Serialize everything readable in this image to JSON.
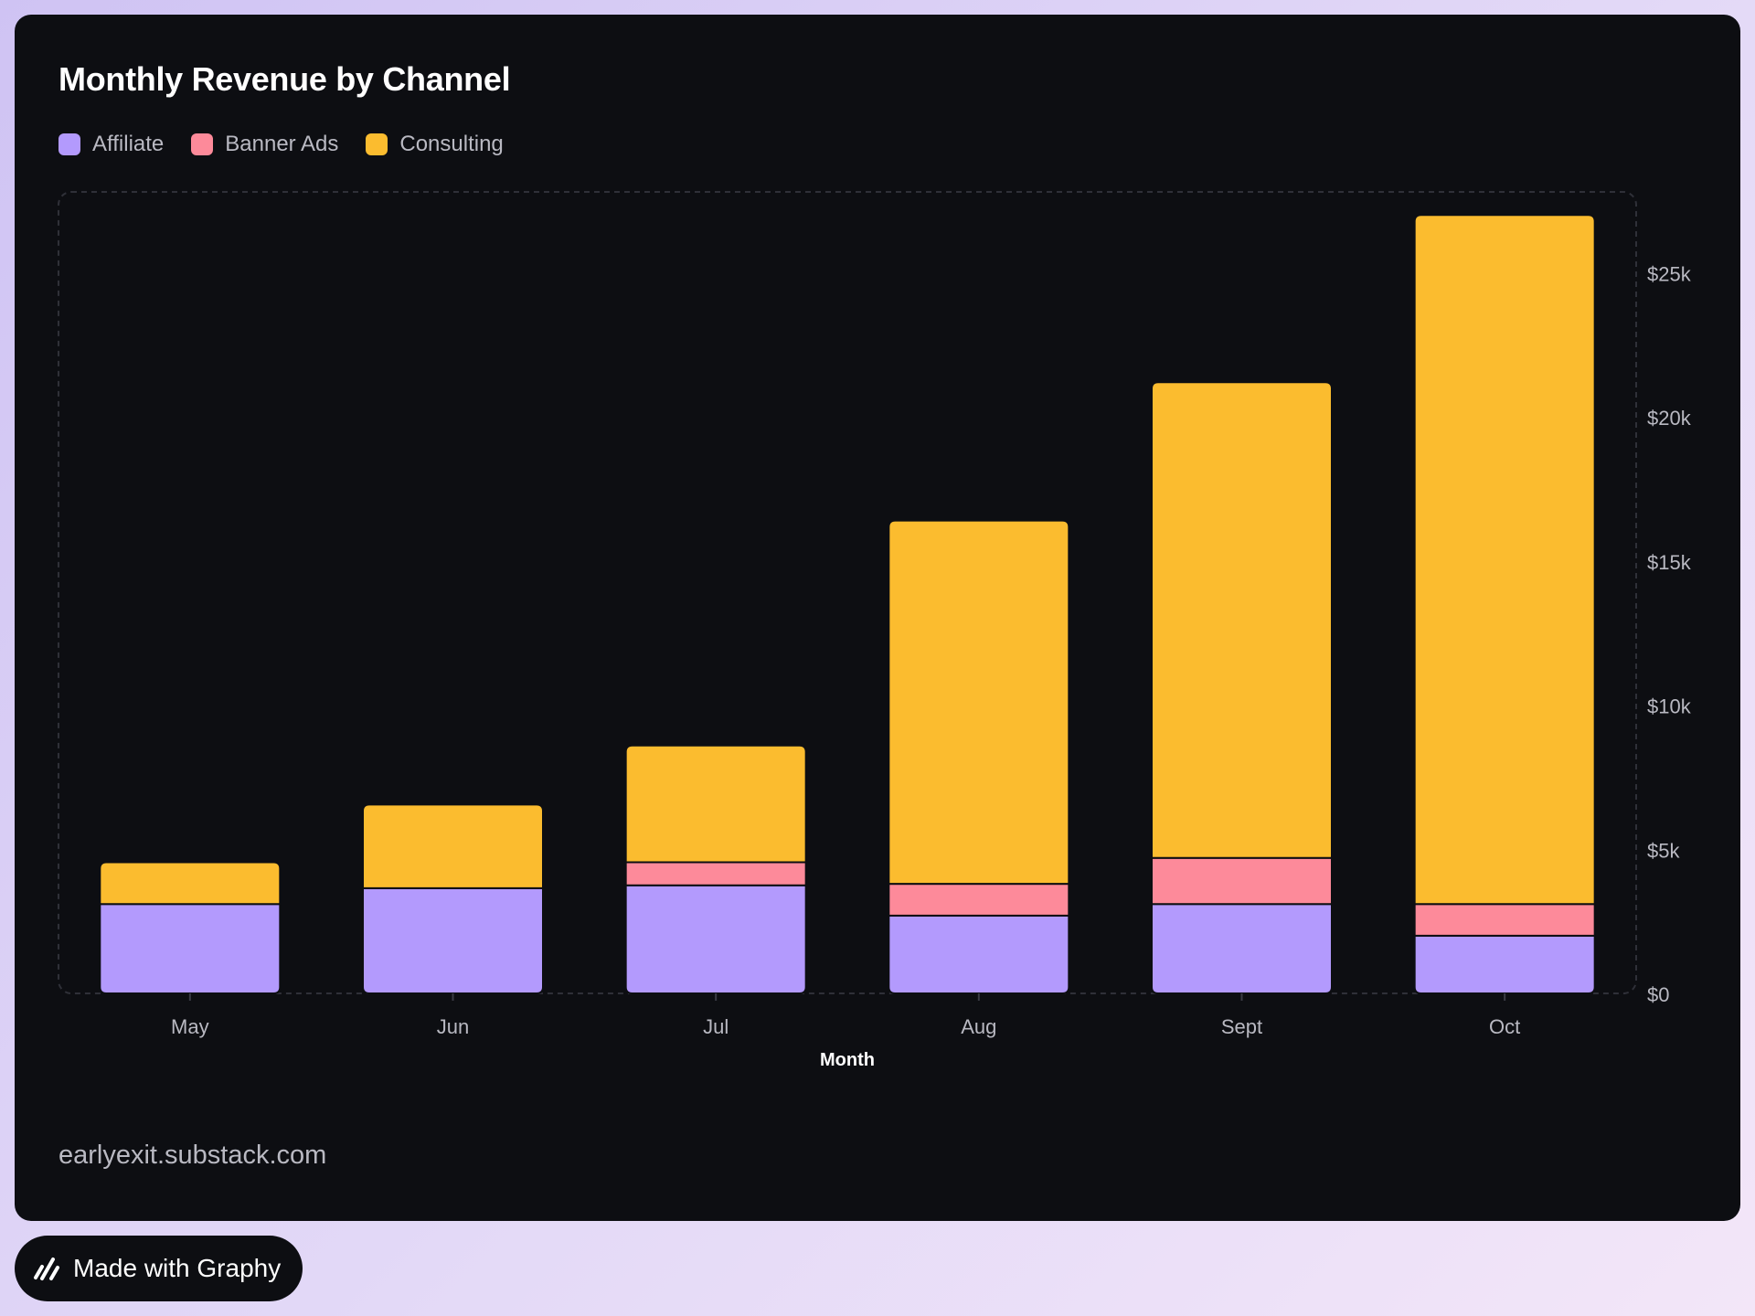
{
  "title": "Monthly Revenue by Channel",
  "footer_url": "earlyexit.substack.com",
  "badge": {
    "label": "Made with Graphy",
    "icon": "graphy-logo-icon"
  },
  "chart_data": {
    "type": "bar",
    "stacked": true,
    "title": "Monthly Revenue by Channel",
    "xlabel": "Month",
    "ylabel": "",
    "categories": [
      "May",
      "Jun",
      "Jul",
      "Aug",
      "Sept",
      "Oct"
    ],
    "series": [
      {
        "name": "Affiliate",
        "color": "#b39afd",
        "values": [
          3100,
          3650,
          3750,
          2700,
          3100,
          2000
        ]
      },
      {
        "name": "Banner Ads",
        "color": "#fd8a9a",
        "values": [
          0,
          0,
          800,
          1100,
          1600,
          1100
        ]
      },
      {
        "name": "Consulting",
        "color": "#fbbc2f",
        "values": [
          1450,
          2900,
          4050,
          12600,
          16500,
          23900
        ]
      }
    ],
    "y_ticks": [
      {
        "value": 0,
        "label": "$0"
      },
      {
        "value": 5000,
        "label": "$5k"
      },
      {
        "value": 10000,
        "label": "$10k"
      },
      {
        "value": 15000,
        "label": "$15k"
      },
      {
        "value": 20000,
        "label": "$20k"
      },
      {
        "value": 25000,
        "label": "$25k"
      }
    ],
    "ylim": [
      0,
      27800
    ],
    "y_axis_position": "right",
    "legend_position": "top-left",
    "grid": false
  }
}
